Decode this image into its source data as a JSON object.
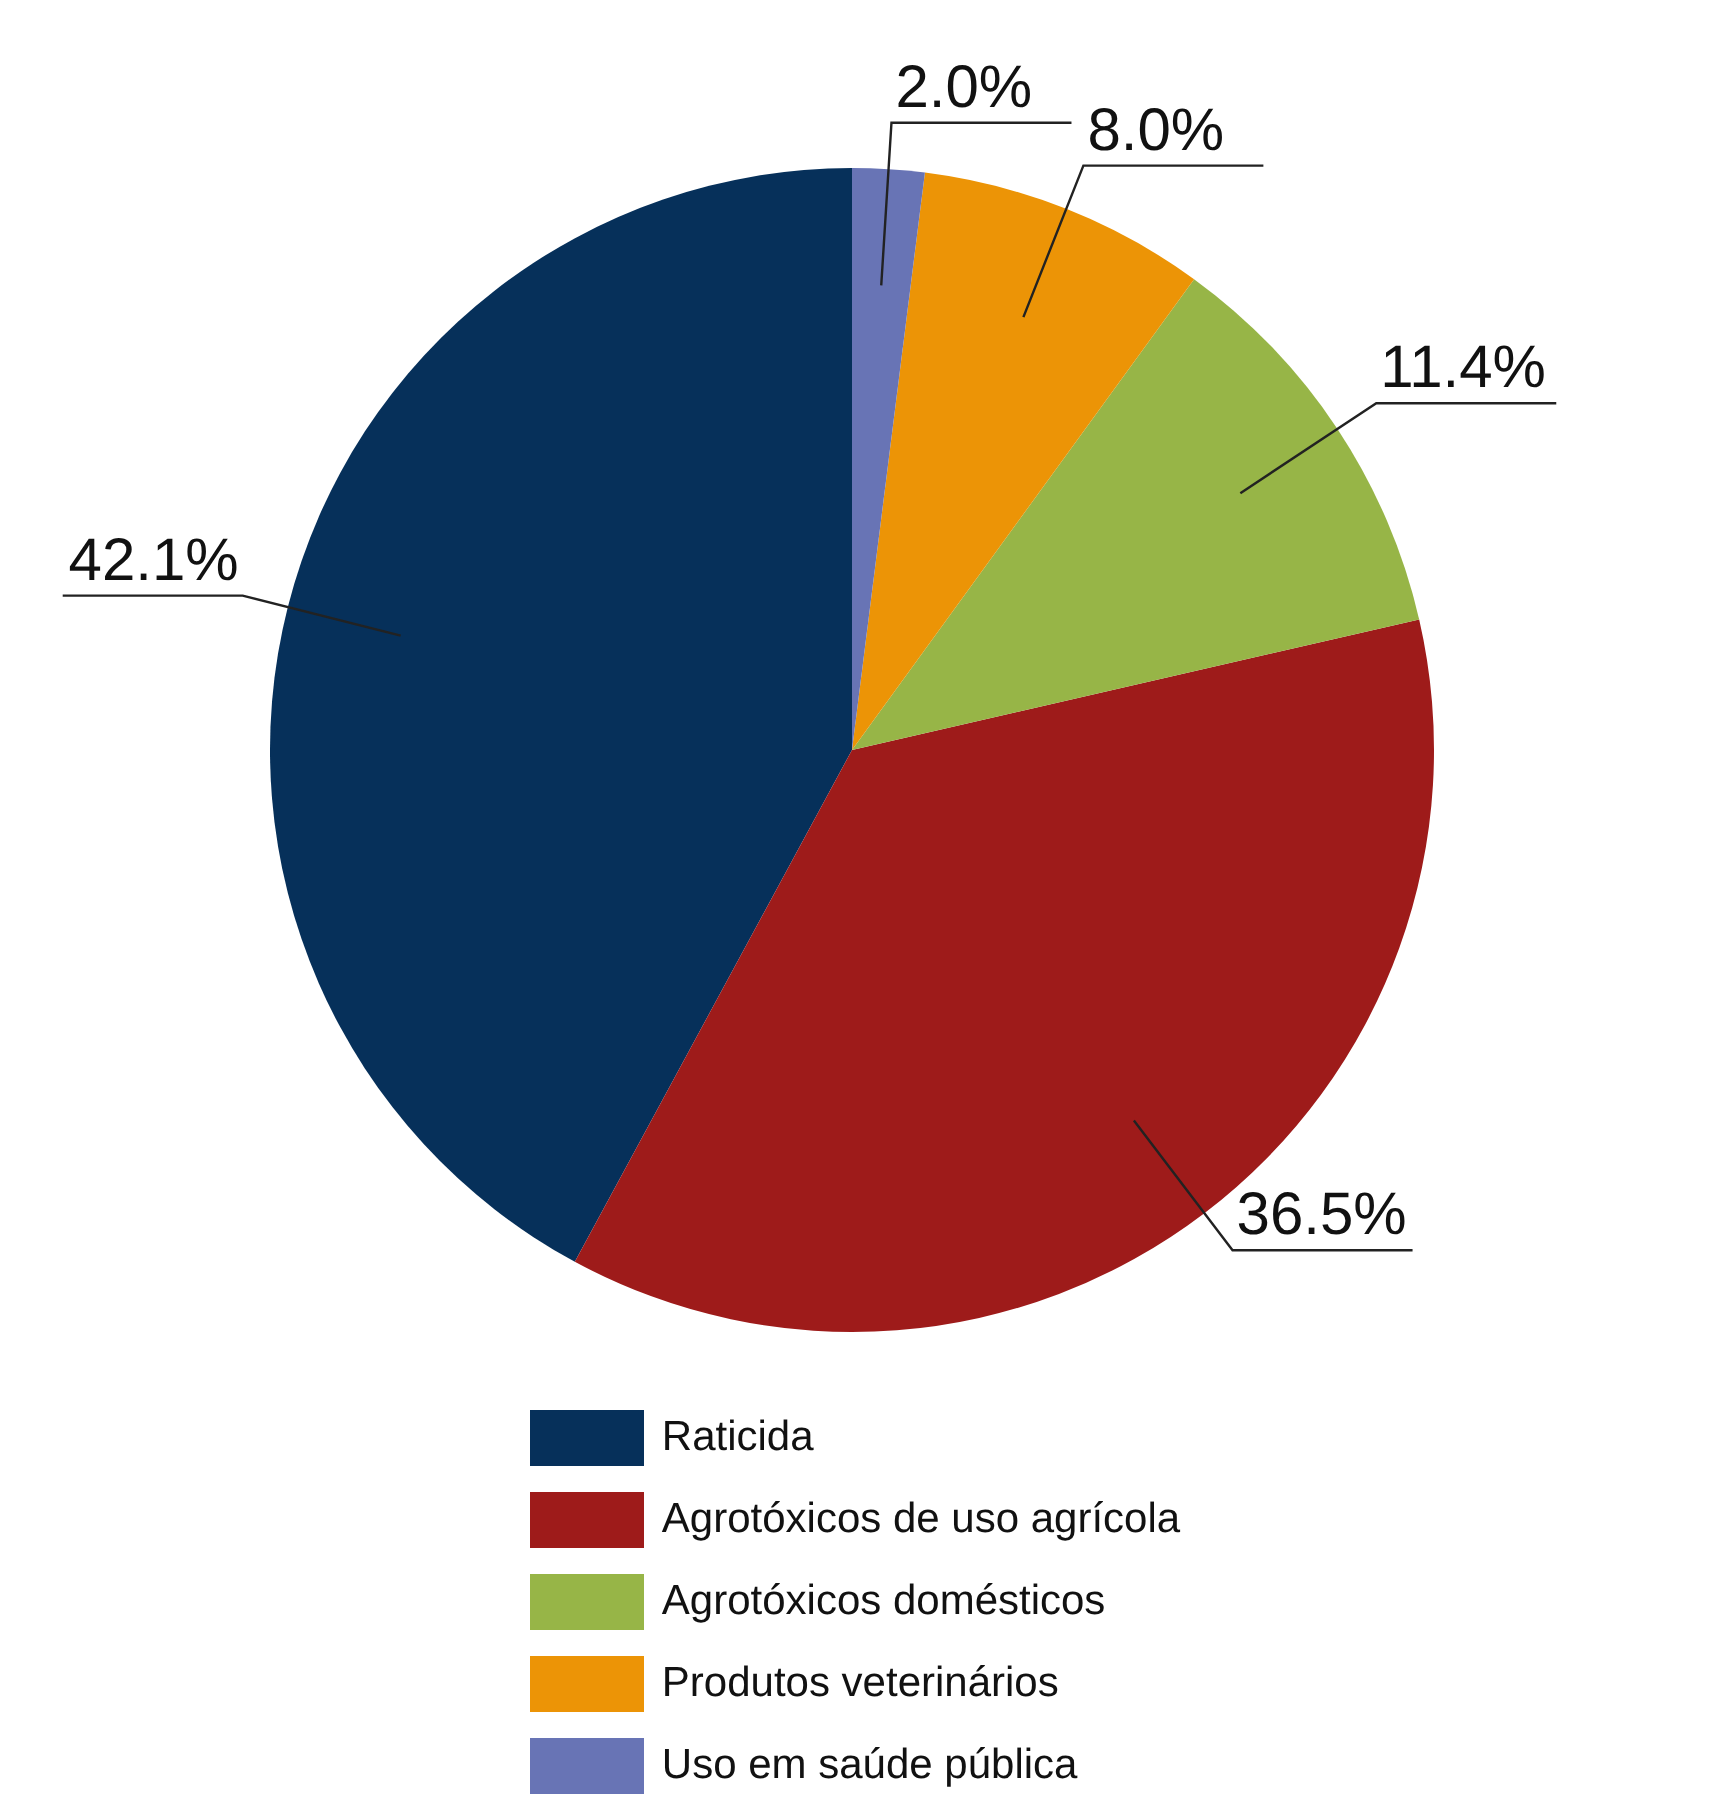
{
  "chart_data": {
    "type": "pie",
    "categories": [
      "Raticida",
      "Agrotóxicos de uso agrícola",
      "Agrotóxicos domésticos",
      "Produtos veterinários",
      "Uso em saúde pública"
    ],
    "values": [
      42.1,
      36.5,
      11.4,
      8.0,
      2.0
    ],
    "colors": [
      "#06305a",
      "#9e1b1a",
      "#97b547",
      "#ec9406",
      "#6874b5"
    ],
    "value_labels": [
      "42.1%",
      "36.5%",
      "11.4%",
      "8.0%",
      "2.0%"
    ],
    "legend": "bottom"
  }
}
